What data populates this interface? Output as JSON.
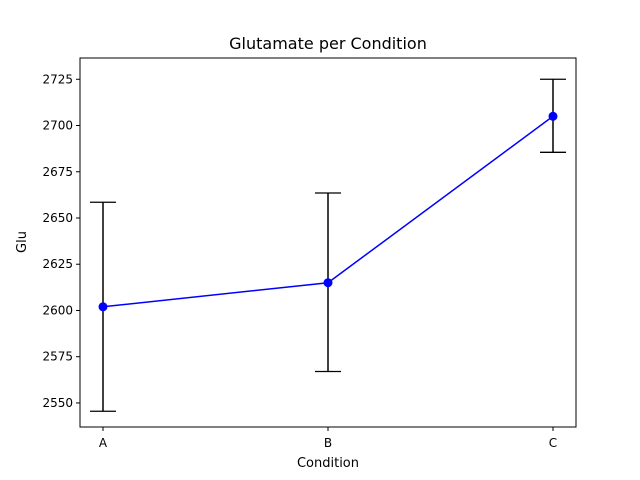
{
  "chart_data": {
    "type": "line",
    "title": "Glutamate per Condition",
    "xlabel": "Condition",
    "ylabel": "Glu",
    "categories": [
      "A",
      "B",
      "C"
    ],
    "series": [
      {
        "values": [
          2602,
          2615,
          2705
        ],
        "error": [
          [
            2545.5,
            2658.5
          ],
          [
            2567,
            2663.5
          ],
          [
            2685.5,
            2725
          ]
        ],
        "color": "#0000ff",
        "error_color": "#000000"
      }
    ],
    "ylim": [
      2537,
      2736.5
    ],
    "yticks": [
      2550,
      2575,
      2600,
      2625,
      2650,
      2675,
      2700,
      2725
    ],
    "grid": false,
    "legend": "none"
  }
}
